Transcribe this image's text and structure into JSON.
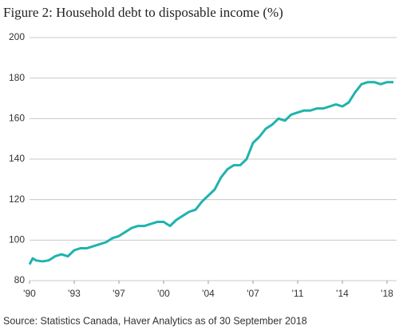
{
  "chart_data": {
    "type": "line",
    "title": "Figure 2: Household debt to disposable income (%)",
    "source": "Source: Statistics Canada, Haver Analytics as of 30 September 2018",
    "x": [
      1990,
      1990.25,
      1990.5,
      1991,
      1991.5,
      1992,
      1992.5,
      1993,
      1993.5,
      1994,
      1994.5,
      1995,
      1995.5,
      1996,
      1996.5,
      1997,
      1997.5,
      1998,
      1998.5,
      1999,
      1999.5,
      2000,
      2000.5,
      2001,
      2001.5,
      2002,
      2002.5,
      2003,
      2003.5,
      2004,
      2004.5,
      2005,
      2005.5,
      2006,
      2006.5,
      2007,
      2007.5,
      2008,
      2008.5,
      2009,
      2009.5,
      2010,
      2010.5,
      2011,
      2011.5,
      2012,
      2012.5,
      2013,
      2013.5,
      2014,
      2014.5,
      2015,
      2015.5,
      2016,
      2016.5,
      2017,
      2017.5,
      2018,
      2018.5
    ],
    "values": [
      88,
      91,
      90,
      89.5,
      90,
      92,
      93,
      92,
      95,
      96,
      96,
      97,
      98,
      99,
      101,
      102,
      104,
      106,
      107,
      107,
      108,
      109,
      109,
      107,
      110,
      112,
      114,
      115,
      119,
      122,
      125,
      131,
      135,
      137,
      137,
      140,
      148,
      151,
      155,
      157,
      160,
      159,
      162,
      163,
      164,
      164,
      165,
      165,
      166,
      167,
      166,
      168,
      173,
      177,
      178,
      178,
      177,
      178,
      178
    ],
    "color": "#1fb3ae",
    "xlim": [
      1990,
      2018.75
    ],
    "xticks": [
      {
        "value": 1990,
        "label": "'90"
      },
      {
        "value": 1993.5,
        "label": "'93"
      },
      {
        "value": 1997,
        "label": "'97"
      },
      {
        "value": 2000.5,
        "label": "'00"
      },
      {
        "value": 2004,
        "label": "'04"
      },
      {
        "value": 2007.5,
        "label": "'07"
      },
      {
        "value": 2011,
        "label": "'11"
      },
      {
        "value": 2014.5,
        "label": "'14"
      },
      {
        "value": 2018,
        "label": "'18"
      }
    ],
    "ylim": [
      80,
      200
    ],
    "yticks": [
      80,
      100,
      120,
      140,
      160,
      180,
      200
    ],
    "grid": true
  }
}
